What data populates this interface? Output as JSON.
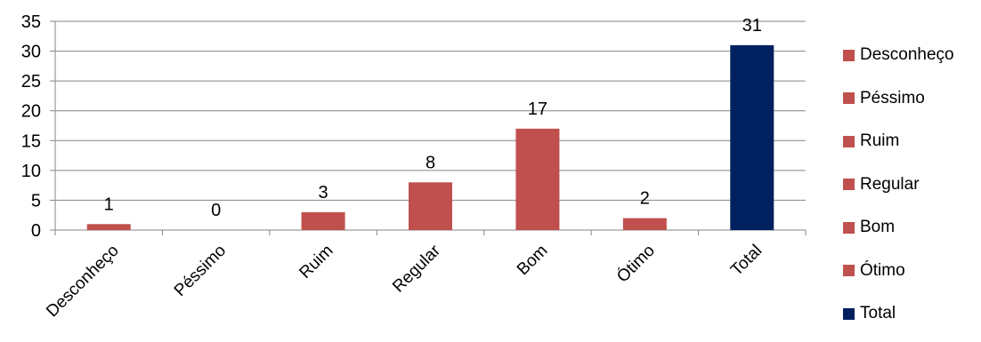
{
  "chart_data": {
    "type": "bar",
    "categories": [
      "Desconheço",
      "Péssimo",
      "Ruim",
      "Regular",
      "Bom",
      "Ótimo",
      "Total"
    ],
    "values": [
      1,
      0,
      3,
      8,
      17,
      2,
      31
    ],
    "bar_colors": [
      "#c0504d",
      "#c0504d",
      "#c0504d",
      "#c0504d",
      "#c0504d",
      "#c0504d",
      "#002060"
    ],
    "data_labels": [
      "1",
      "0",
      "3",
      "8",
      "17",
      "2",
      "31"
    ],
    "ylim": [
      0,
      35
    ],
    "yticks": [
      0,
      5,
      10,
      15,
      20,
      25,
      30,
      35
    ],
    "grid": true,
    "legend_position": "right",
    "legend": [
      {
        "label": "Desconheço",
        "color": "#c0504d"
      },
      {
        "label": "Péssimo",
        "color": "#c0504d"
      },
      {
        "label": "Ruim",
        "color": "#c0504d"
      },
      {
        "label": "Regular",
        "color": "#c0504d"
      },
      {
        "label": "Bom",
        "color": "#c0504d"
      },
      {
        "label": "Ótimo",
        "color": "#c0504d"
      },
      {
        "label": "Total",
        "color": "#002060"
      }
    ]
  }
}
